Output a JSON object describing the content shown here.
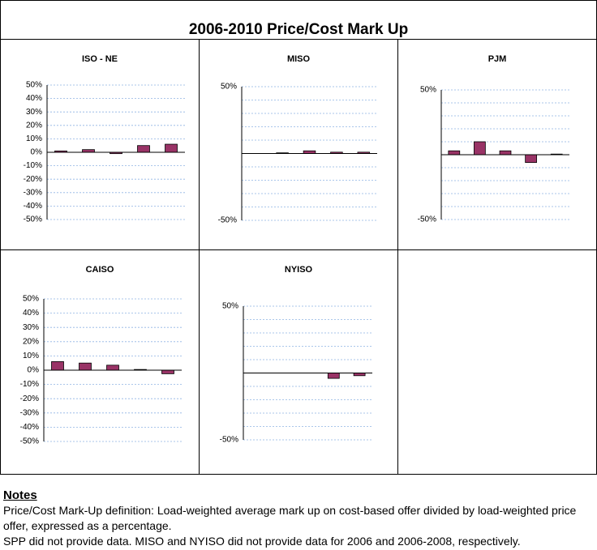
{
  "title": "2006-2010 Price/Cost Mark Up",
  "chart_data": [
    {
      "type": "bar",
      "title": "ISO - NE",
      "categories": [
        null,
        null,
        null,
        null,
        null
      ],
      "values": [
        1,
        2,
        -1,
        5,
        6
      ],
      "color": "#993366",
      "ylim": [
        -50,
        50
      ],
      "yticks": [
        {
          "value": -50,
          "label": "-50%"
        },
        {
          "value": -40,
          "label": "-40%"
        },
        {
          "value": -30,
          "label": "-30%"
        },
        {
          "value": -20,
          "label": "-20%"
        },
        {
          "value": -10,
          "label": "-10%"
        },
        {
          "value": 0,
          "label": "0%"
        },
        {
          "value": 10,
          "label": "10%"
        },
        {
          "value": 20,
          "label": "20%"
        },
        {
          "value": 30,
          "label": "30%"
        },
        {
          "value": 40,
          "label": "40%"
        },
        {
          "value": 50,
          "label": "50%"
        }
      ],
      "grid": true
    },
    {
      "type": "bar",
      "title": "MISO",
      "categories": [
        null,
        null,
        null,
        null,
        null
      ],
      "values": [
        null,
        0.5,
        2,
        1,
        1
      ],
      "color": "#993366",
      "ylim": [
        -50,
        50
      ],
      "yticks": [
        {
          "value": -50,
          "label": "-50%"
        },
        {
          "value": 50,
          "label": "50%"
        }
      ],
      "minor_yticks": [
        -40,
        -30,
        -20,
        -10,
        10,
        20,
        30,
        40
      ],
      "grid": true
    },
    {
      "type": "bar",
      "title": "PJM",
      "categories": [
        null,
        null,
        null,
        null,
        null
      ],
      "values": [
        3,
        10,
        3,
        -6,
        0.5
      ],
      "color": "#993366",
      "ylim": [
        -50,
        50
      ],
      "yticks": [
        {
          "value": -50,
          "label": "-50%"
        },
        {
          "value": 50,
          "label": "50%"
        }
      ],
      "minor_yticks": [
        -40,
        -30,
        -20,
        -10,
        10,
        20,
        30,
        40
      ],
      "grid": true
    },
    {
      "type": "bar",
      "title": "CAISO",
      "categories": [
        null,
        null,
        null,
        null,
        null
      ],
      "values": [
        6,
        5,
        3.5,
        0.5,
        -2.5
      ],
      "color": "#993366",
      "ylim": [
        -50,
        50
      ],
      "yticks": [
        {
          "value": -50,
          "label": "-50%"
        },
        {
          "value": -40,
          "label": "-40%"
        },
        {
          "value": -30,
          "label": "-30%"
        },
        {
          "value": -20,
          "label": "-20%"
        },
        {
          "value": -10,
          "label": "-10%"
        },
        {
          "value": 0,
          "label": "0%"
        },
        {
          "value": 10,
          "label": "10%"
        },
        {
          "value": 20,
          "label": "20%"
        },
        {
          "value": 30,
          "label": "30%"
        },
        {
          "value": 40,
          "label": "40%"
        },
        {
          "value": 50,
          "label": "50%"
        }
      ],
      "grid": true
    },
    {
      "type": "bar",
      "title": "NYISO",
      "categories": [
        null,
        null,
        null,
        null,
        null
      ],
      "values": [
        null,
        null,
        null,
        -4,
        -2
      ],
      "color": "#993366",
      "ylim": [
        -50,
        50
      ],
      "yticks": [
        {
          "value": -50,
          "label": "-50%"
        },
        {
          "value": 50,
          "label": "50%"
        }
      ],
      "minor_yticks": [
        -40,
        -30,
        -20,
        -10,
        10,
        20,
        30,
        40
      ],
      "grid": true
    }
  ],
  "notes": {
    "heading": "Notes",
    "lines": [
      "Price/Cost Mark-Up definition: Load-weighted average mark up on cost-based offer divided by load-weighted price offer, expressed as a percentage.",
      "SPP did not provide data.  MISO and NYISO did not provide data for 2006 and 2006-2008, respectively."
    ]
  }
}
